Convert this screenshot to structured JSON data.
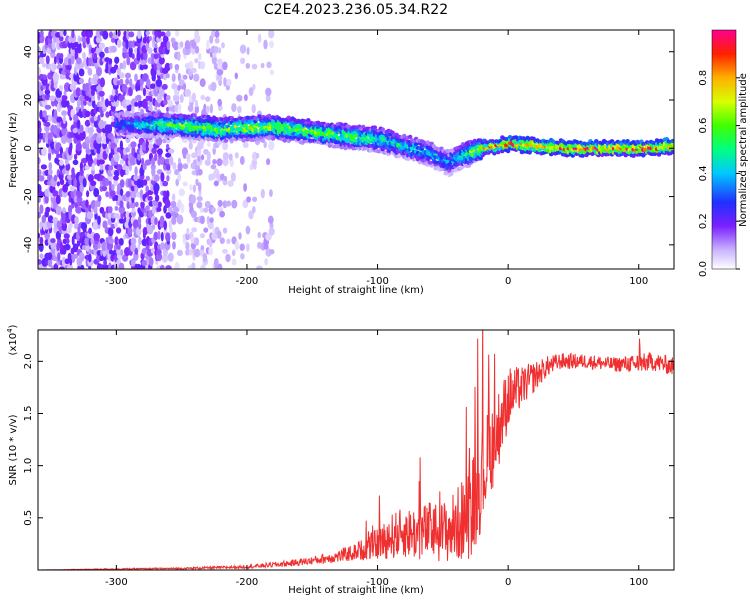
{
  "title": "C2E4.2023.236.05.34.R22",
  "colors": {
    "snr_line": "#f03030",
    "spectrogram_cmap": "rainbow",
    "background": "#ffffff"
  },
  "chart_data": [
    {
      "type": "heatmap",
      "title": "C2E4.2023.236.05.34.R22",
      "xlabel": "Height of straight line (km)",
      "ylabel": "Frequency (Hz)",
      "xlim": [
        -360,
        127
      ],
      "ylim": [
        -50,
        49
      ],
      "xticks": [
        -300,
        -200,
        -100,
        0,
        100
      ],
      "yticks": [
        -40,
        -20,
        0,
        20,
        40
      ],
      "grid": false,
      "colorbar": {
        "label": "Normalized spectral amplitude",
        "range": [
          0.0,
          1.0
        ],
        "ticks": [
          0.0,
          0.2,
          0.4,
          0.6,
          0.8
        ],
        "colormap": "rainbow"
      },
      "ridge": {
        "description_points_x": [
          -300,
          -260,
          -220,
          -180,
          -150,
          -120,
          -100,
          -80,
          -60,
          -45,
          -35,
          -20,
          0,
          50,
          100,
          127
        ],
        "frequency_hz": [
          10,
          10,
          8,
          9,
          7,
          5,
          4,
          1,
          -2,
          -6,
          -3,
          0,
          2,
          0,
          0,
          1
        ],
        "amplitude": [
          0.3,
          0.6,
          0.65,
          0.7,
          0.6,
          0.6,
          0.55,
          0.5,
          0.45,
          0.4,
          0.5,
          0.8,
          0.85,
          0.9,
          0.9,
          0.85
        ]
      }
    },
    {
      "type": "line",
      "xlabel": "Height of straight line (km)",
      "ylabel": "SNR (10 * v/v)",
      "ymultiplier": "(x10",
      "ymultiplier_exp": "4",
      "ymultiplier_close": ")",
      "xlim": [
        -360,
        127
      ],
      "ylim": [
        0,
        23000
      ],
      "xticks": [
        -300,
        -200,
        -100,
        0,
        100
      ],
      "yticks": [
        5000,
        10000,
        15000,
        20000
      ],
      "ytick_labels": [
        "0.5",
        "1.0",
        "1.5",
        "2.0"
      ],
      "grid": false,
      "series": [
        {
          "x": [
            -360,
            -300,
            -250,
            -200,
            -170,
            -150,
            -130,
            -115,
            -100,
            -90,
            -80,
            -70,
            -60,
            -50,
            -40,
            -30,
            -25,
            -20,
            -15,
            -10,
            -5,
            0,
            10,
            20,
            25,
            30,
            40,
            60,
            80,
            100,
            110,
            127
          ],
          "y": [
            0,
            100,
            150,
            300,
            600,
            900,
            1300,
            1800,
            2500,
            3200,
            3600,
            3500,
            3800,
            3600,
            4200,
            5500,
            7000,
            9000,
            11000,
            12500,
            14500,
            16500,
            17500,
            18500,
            19000,
            19500,
            20000,
            20000,
            19700,
            19800,
            20000,
            19500
          ],
          "noise": [
            0,
            50,
            80,
            150,
            300,
            400,
            600,
            900,
            1500,
            2200,
            2400,
            2600,
            2800,
            3000,
            3500,
            4500,
            5000,
            5000,
            4500,
            4000,
            3500,
            3000,
            2000,
            1500,
            1200,
            1000,
            800,
            700,
            700,
            900,
            900,
            900
          ]
        }
      ]
    }
  ]
}
